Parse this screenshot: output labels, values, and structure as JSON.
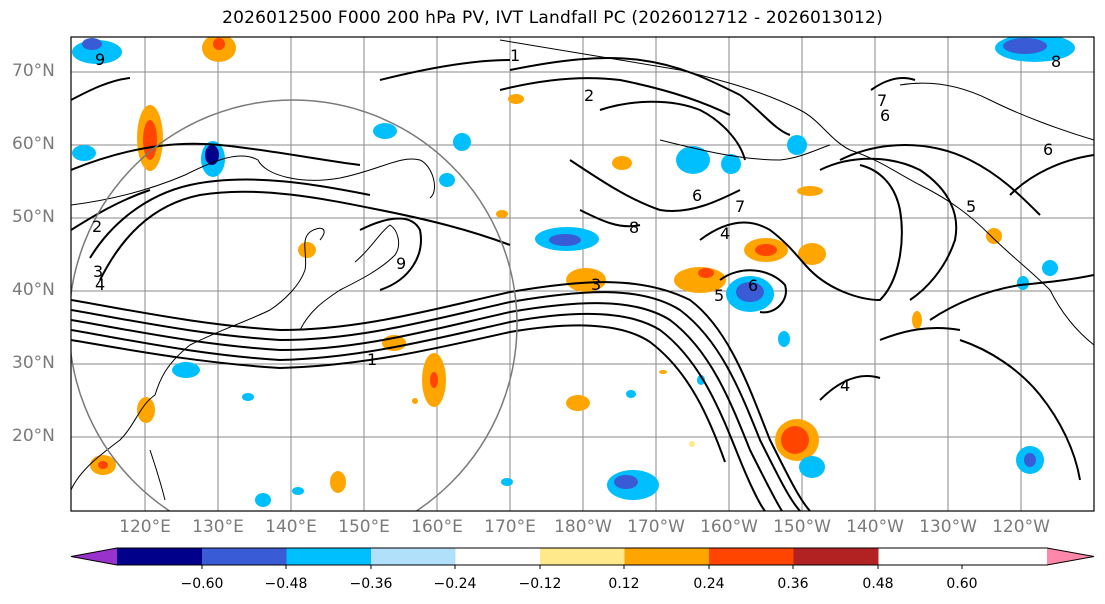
{
  "title": "2026012500 F000 200 hPa PV, IVT Landfall PC (2026012712 - 2026013012)",
  "lat_labels": [
    "70°N",
    "60°N",
    "50°N",
    "40°N",
    "30°N",
    "20°N"
  ],
  "lon_labels": [
    "120°E",
    "130°E",
    "140°E",
    "150°E",
    "160°E",
    "170°E",
    "180°W",
    "170°W",
    "160°W",
    "150°W",
    "140°W",
    "130°W",
    "120°W"
  ],
  "contour_labels": [
    "1",
    "2",
    "3",
    "4",
    "5",
    "6",
    "7",
    "8",
    "9"
  ],
  "colorbar": {
    "ticks": [
      "−0.60",
      "−0.48",
      "−0.36",
      "−0.24",
      "−0.12",
      "0.12",
      "0.24",
      "0.36",
      "0.48",
      "0.60"
    ],
    "colors": [
      "#9932cc",
      "#00008b",
      "#3a5bd6",
      "#00bfff",
      "#b0e0fa",
      "#ffffff",
      "#ffe98a",
      "#ffa500",
      "#ff4500",
      "#b22222",
      "#ff88aa"
    ]
  }
}
